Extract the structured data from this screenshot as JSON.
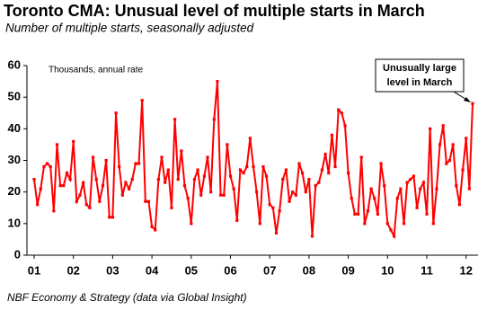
{
  "chart_data": {
    "type": "line",
    "title": "Toronto CMA: Unusual level of multiple starts in March",
    "subtitle": "Number of multiple starts, seasonally adjusted",
    "y_unit_label": "Thousands, annual rate",
    "annotation": [
      "Unusually large",
      "level in March"
    ],
    "source": "NBF Economy & Strategy (data via Global Insight)",
    "categories": [
      "01",
      null,
      null,
      null,
      null,
      null,
      null,
      null,
      null,
      null,
      null,
      null,
      "02",
      null,
      null,
      null,
      null,
      null,
      null,
      null,
      null,
      null,
      null,
      null,
      "03",
      null,
      null,
      null,
      null,
      null,
      null,
      null,
      null,
      null,
      null,
      null,
      "04",
      null,
      null,
      null,
      null,
      null,
      null,
      null,
      null,
      null,
      null,
      null,
      "05",
      null,
      null,
      null,
      null,
      null,
      null,
      null,
      null,
      null,
      null,
      null,
      "06",
      null,
      null,
      null,
      null,
      null,
      null,
      null,
      null,
      null,
      null,
      null,
      "07",
      null,
      null,
      null,
      null,
      null,
      null,
      null,
      null,
      null,
      null,
      null,
      "08",
      null,
      null,
      null,
      null,
      null,
      null,
      null,
      null,
      null,
      null,
      null,
      "09",
      null,
      null,
      null,
      null,
      null,
      null,
      null,
      null,
      null,
      null,
      null,
      "10",
      null,
      null,
      null,
      null,
      null,
      null,
      null,
      null,
      null,
      null,
      null,
      "11",
      null,
      null,
      null,
      null,
      null,
      null,
      null,
      null,
      null,
      null,
      null,
      "12",
      null,
      null
    ],
    "series": [
      {
        "name": "Multiple starts",
        "color": "#ff0000",
        "values": [
          24,
          16,
          21,
          28,
          29,
          28,
          14,
          35,
          22,
          22,
          26,
          24,
          36,
          17,
          19,
          23,
          16,
          15,
          31,
          24,
          17,
          22,
          30,
          12,
          12,
          45,
          28,
          19,
          23,
          21,
          24,
          29,
          29,
          49,
          17,
          17,
          9,
          8,
          24,
          31,
          23,
          27,
          15,
          43,
          24,
          33,
          22,
          18,
          10,
          24,
          27,
          19,
          25,
          31,
          20,
          43,
          55,
          19,
          19,
          35,
          25,
          21,
          11,
          27,
          26,
          28,
          37,
          28,
          20,
          10,
          28,
          25,
          16,
          15,
          7,
          14,
          24,
          27,
          17,
          20,
          19,
          29,
          26,
          20,
          24,
          6,
          22,
          23,
          27,
          32,
          26,
          38,
          28,
          46,
          45,
          41,
          26,
          18,
          13,
          13,
          31,
          10,
          14,
          21,
          18,
          13,
          29,
          22,
          10,
          8,
          6,
          18,
          21,
          10,
          23,
          24,
          25,
          15,
          21,
          23,
          13,
          40,
          10,
          21,
          35,
          41,
          29,
          30,
          35,
          22,
          16,
          27,
          37,
          21,
          48
        ]
      }
    ],
    "ylim": [
      0,
      60
    ],
    "yticks": [
      0,
      10,
      20,
      30,
      40,
      50,
      60
    ]
  }
}
